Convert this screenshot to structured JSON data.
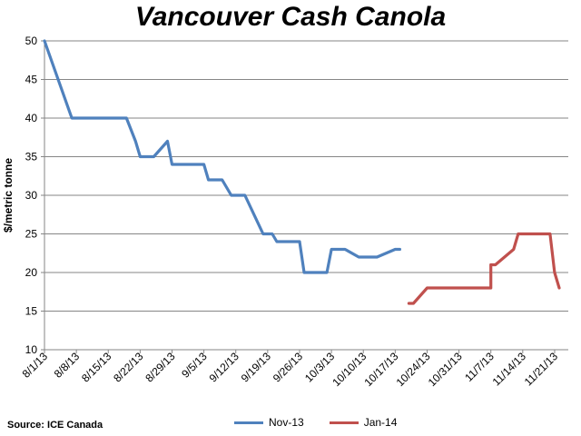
{
  "chart_data": {
    "type": "line",
    "title": "Vancouver Cash Canola",
    "xlabel": "",
    "ylabel": "$/metric  tonne",
    "ylim": [
      10,
      50
    ],
    "yticks": [
      10,
      15,
      20,
      25,
      30,
      35,
      40,
      45,
      50
    ],
    "x_tick_labels": [
      "8/1/13",
      "8/8/13",
      "8/15/13",
      "8/22/13",
      "8/29/13",
      "9/5/13",
      "9/12/13",
      "9/19/13",
      "9/26/13",
      "10/3/13",
      "10/10/13",
      "10/17/13",
      "10/24/13",
      "10/31/13",
      "11/7/13",
      "11/14/13",
      "11/21/13"
    ],
    "x_start": "8/1/13",
    "x_end_day": 115,
    "x_units": "days since 8/1/13",
    "grid": "horizontal",
    "legend_position": "bottom",
    "series": [
      {
        "name": "Nov-13",
        "color": "#4f81bd",
        "points": [
          [
            0,
            50
          ],
          [
            6,
            40
          ],
          [
            13,
            40
          ],
          [
            18,
            40
          ],
          [
            20,
            37
          ],
          [
            21,
            35
          ],
          [
            24,
            35
          ],
          [
            27,
            37
          ],
          [
            28,
            34
          ],
          [
            35,
            34
          ],
          [
            36,
            32
          ],
          [
            39,
            32
          ],
          [
            41,
            30
          ],
          [
            44,
            30
          ],
          [
            48,
            25
          ],
          [
            50,
            25
          ],
          [
            51,
            24
          ],
          [
            56,
            24
          ],
          [
            57,
            20
          ],
          [
            62,
            20
          ],
          [
            63,
            23
          ],
          [
            66,
            23
          ],
          [
            69,
            22
          ],
          [
            73,
            22
          ],
          [
            77,
            23
          ],
          [
            78,
            23
          ]
        ]
      },
      {
        "name": "Jan-14",
        "color": "#c0504d",
        "points": [
          [
            80,
            16
          ],
          [
            81,
            16
          ],
          [
            84,
            18
          ],
          [
            98,
            18
          ],
          [
            98,
            21
          ],
          [
            99,
            21
          ],
          [
            103,
            23
          ],
          [
            104,
            25
          ],
          [
            111,
            25
          ],
          [
            112,
            20
          ],
          [
            113,
            18
          ]
        ]
      }
    ]
  },
  "source": "Source: ICE Canada"
}
